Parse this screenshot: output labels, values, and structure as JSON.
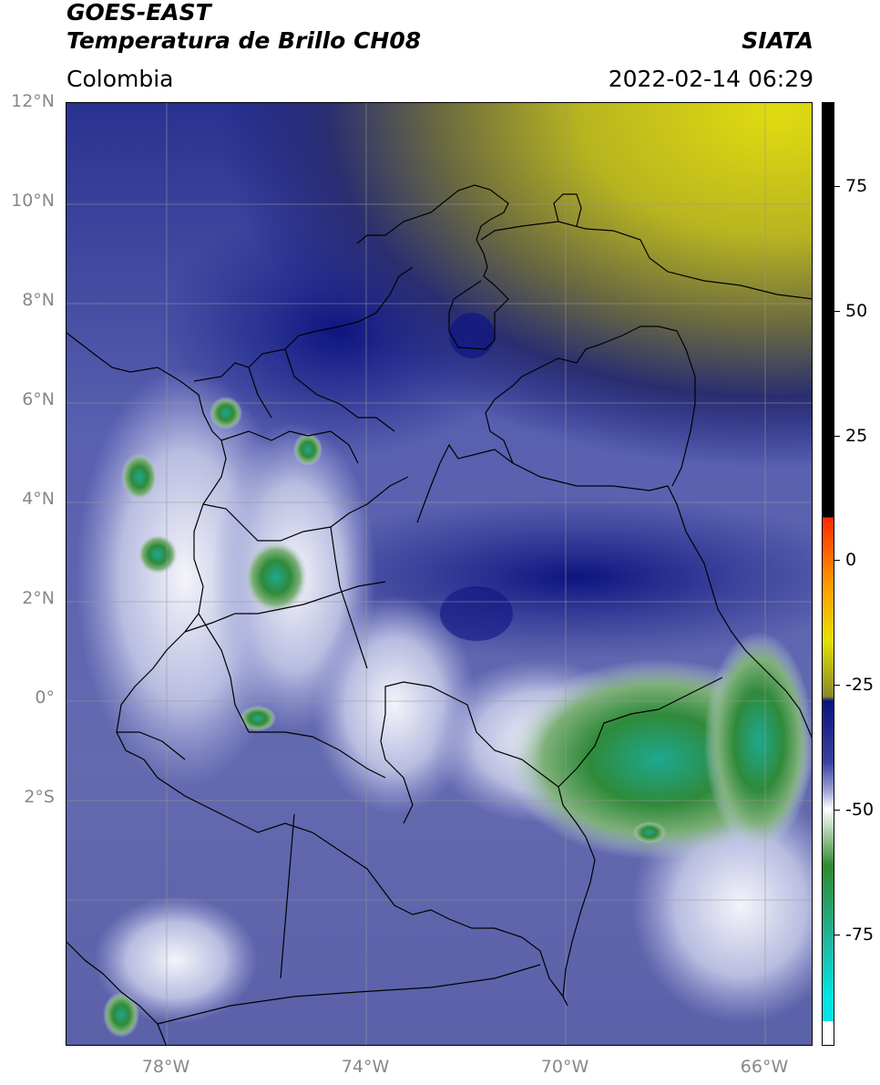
{
  "header": {
    "line1": "GOES-EAST",
    "line2": "Temperatura de Brillo CH08",
    "source": "SIATA",
    "region": "Colombia",
    "datetime": "2022-02-14 06:29"
  },
  "lat_ticks": [
    "12°N",
    "10°N",
    "8°N",
    "6°N",
    "4°N",
    "2°N",
    "0°",
    "2°S"
  ],
  "lon_ticks": [
    "78°W",
    "74°W",
    "70°W",
    "66°W"
  ],
  "colorbar": {
    "labels": [
      "75",
      "50",
      "25",
      "0",
      "-25",
      "-50",
      "-75"
    ],
    "colors": {
      "warm_black": "#000000",
      "red": "#ff2a00",
      "orange": "#ff9900",
      "yellow": "#e6e000",
      "olive": "#8a8a2a",
      "navy": "#0a1280",
      "blue": "#3a42a0",
      "lavender": "#9ea3d8",
      "white": "#ffffff",
      "green": "#2f8a2f",
      "teal": "#1fb8a0",
      "cyan": "#00e5e5"
    }
  }
}
